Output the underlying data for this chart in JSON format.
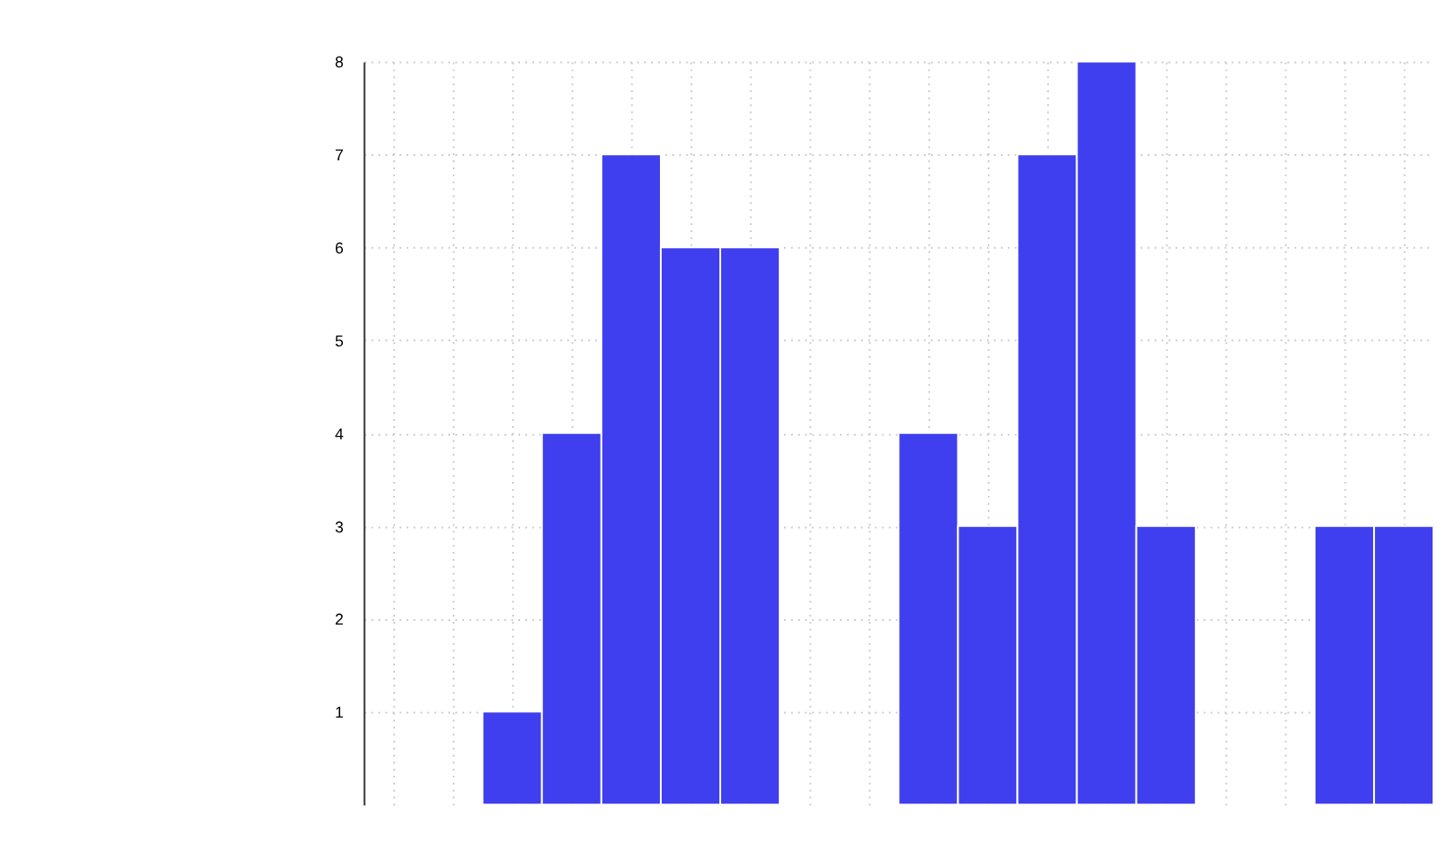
{
  "chart_data": {
    "type": "bar",
    "categories": [
      null,
      null,
      null,
      null,
      null,
      null,
      null,
      null,
      null,
      null,
      null,
      null,
      null,
      null,
      null,
      null,
      null,
      null
    ],
    "series": [
      {
        "color": "#3f3fef",
        "values": [
          null,
          null,
          1,
          4,
          7,
          6,
          6,
          null,
          null,
          4,
          3,
          7,
          8,
          3,
          null,
          null,
          3,
          3
        ]
      }
    ],
    "ylim": [
      0,
      8
    ],
    "yticks": [
      1,
      2,
      3,
      4,
      5,
      6,
      7,
      8
    ],
    "grid": true,
    "tick_labels": "y"
  }
}
